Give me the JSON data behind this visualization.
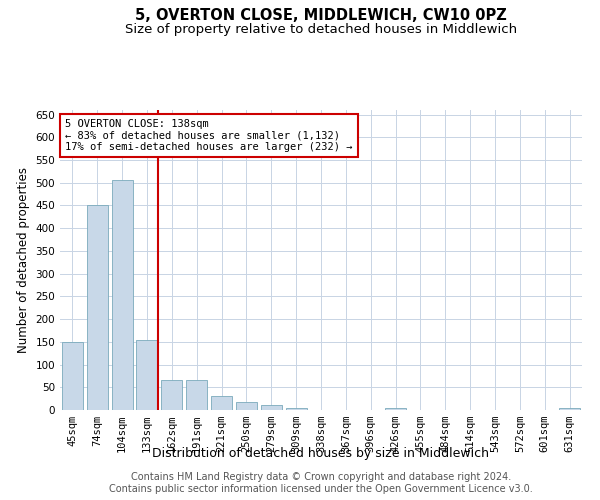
{
  "title": "5, OVERTON CLOSE, MIDDLEWICH, CW10 0PZ",
  "subtitle": "Size of property relative to detached houses in Middlewich",
  "xlabel": "Distribution of detached houses by size in Middlewich",
  "ylabel": "Number of detached properties",
  "footer_line1": "Contains HM Land Registry data © Crown copyright and database right 2024.",
  "footer_line2": "Contains public sector information licensed under the Open Government Licence v3.0.",
  "categories": [
    "45sqm",
    "74sqm",
    "104sqm",
    "133sqm",
    "162sqm",
    "191sqm",
    "221sqm",
    "250sqm",
    "279sqm",
    "309sqm",
    "338sqm",
    "367sqm",
    "396sqm",
    "426sqm",
    "455sqm",
    "484sqm",
    "514sqm",
    "543sqm",
    "572sqm",
    "601sqm",
    "631sqm"
  ],
  "values": [
    150,
    450,
    505,
    155,
    67,
    67,
    30,
    17,
    10,
    5,
    0,
    0,
    0,
    5,
    0,
    0,
    0,
    0,
    0,
    0,
    5
  ],
  "bar_color": "#c8d8e8",
  "bar_edge_color": "#7aaabb",
  "property_line_color": "#cc0000",
  "property_line_index": 3,
  "annotation_text": "5 OVERTON CLOSE: 138sqm\n← 83% of detached houses are smaller (1,132)\n17% of semi-detached houses are larger (232) →",
  "annotation_box_color": "#cc0000",
  "ylim": [
    0,
    660
  ],
  "yticks": [
    0,
    50,
    100,
    150,
    200,
    250,
    300,
    350,
    400,
    450,
    500,
    550,
    600,
    650
  ],
  "background_color": "#ffffff",
  "grid_color": "#c8d4e4",
  "title_fontsize": 10.5,
  "subtitle_fontsize": 9.5,
  "ylabel_fontsize": 8.5,
  "xlabel_fontsize": 9,
  "tick_fontsize": 7.5,
  "annot_fontsize": 7.5,
  "footer_fontsize": 7
}
